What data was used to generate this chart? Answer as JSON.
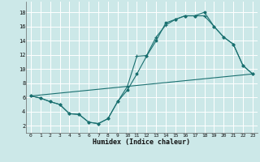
{
  "xlabel": "Humidex (Indice chaleur)",
  "bg_color": "#cce8e8",
  "grid_color": "#ffffff",
  "line_color": "#1a7070",
  "x_ticks": [
    0,
    1,
    2,
    3,
    4,
    5,
    6,
    7,
    8,
    9,
    10,
    11,
    12,
    13,
    14,
    15,
    16,
    17,
    18,
    19,
    20,
    21,
    22,
    23
  ],
  "y_ticks": [
    2,
    4,
    6,
    8,
    10,
    12,
    14,
    16,
    18
  ],
  "ylim": [
    1.0,
    19.5
  ],
  "xlim": [
    -0.5,
    23.5
  ],
  "curve1_x": [
    0,
    1,
    2,
    3,
    4,
    5,
    6,
    7,
    8,
    9,
    10,
    11,
    12,
    13,
    14,
    15,
    16,
    17,
    18,
    19,
    20,
    21,
    22,
    23
  ],
  "curve1_y": [
    6.2,
    5.9,
    5.4,
    5.0,
    3.7,
    3.6,
    2.5,
    2.3,
    3.0,
    5.4,
    7.0,
    9.3,
    11.8,
    14.0,
    16.5,
    17.0,
    17.5,
    17.5,
    18.0,
    16.0,
    14.5,
    13.5,
    10.5,
    9.3
  ],
  "curve2_x": [
    0,
    1,
    2,
    3,
    4,
    5,
    6,
    7,
    8,
    9,
    10,
    11,
    12,
    13,
    14,
    15,
    16,
    17,
    18,
    19,
    20,
    21,
    22,
    23
  ],
  "curve2_y": [
    6.2,
    5.9,
    5.4,
    5.0,
    3.7,
    3.6,
    2.5,
    2.3,
    3.0,
    5.4,
    7.5,
    11.8,
    11.9,
    14.5,
    16.2,
    17.0,
    17.5,
    17.5,
    17.5,
    16.0,
    14.5,
    13.5,
    10.5,
    9.3
  ],
  "curve3_x": [
    0,
    23
  ],
  "curve3_y": [
    6.2,
    9.3
  ]
}
